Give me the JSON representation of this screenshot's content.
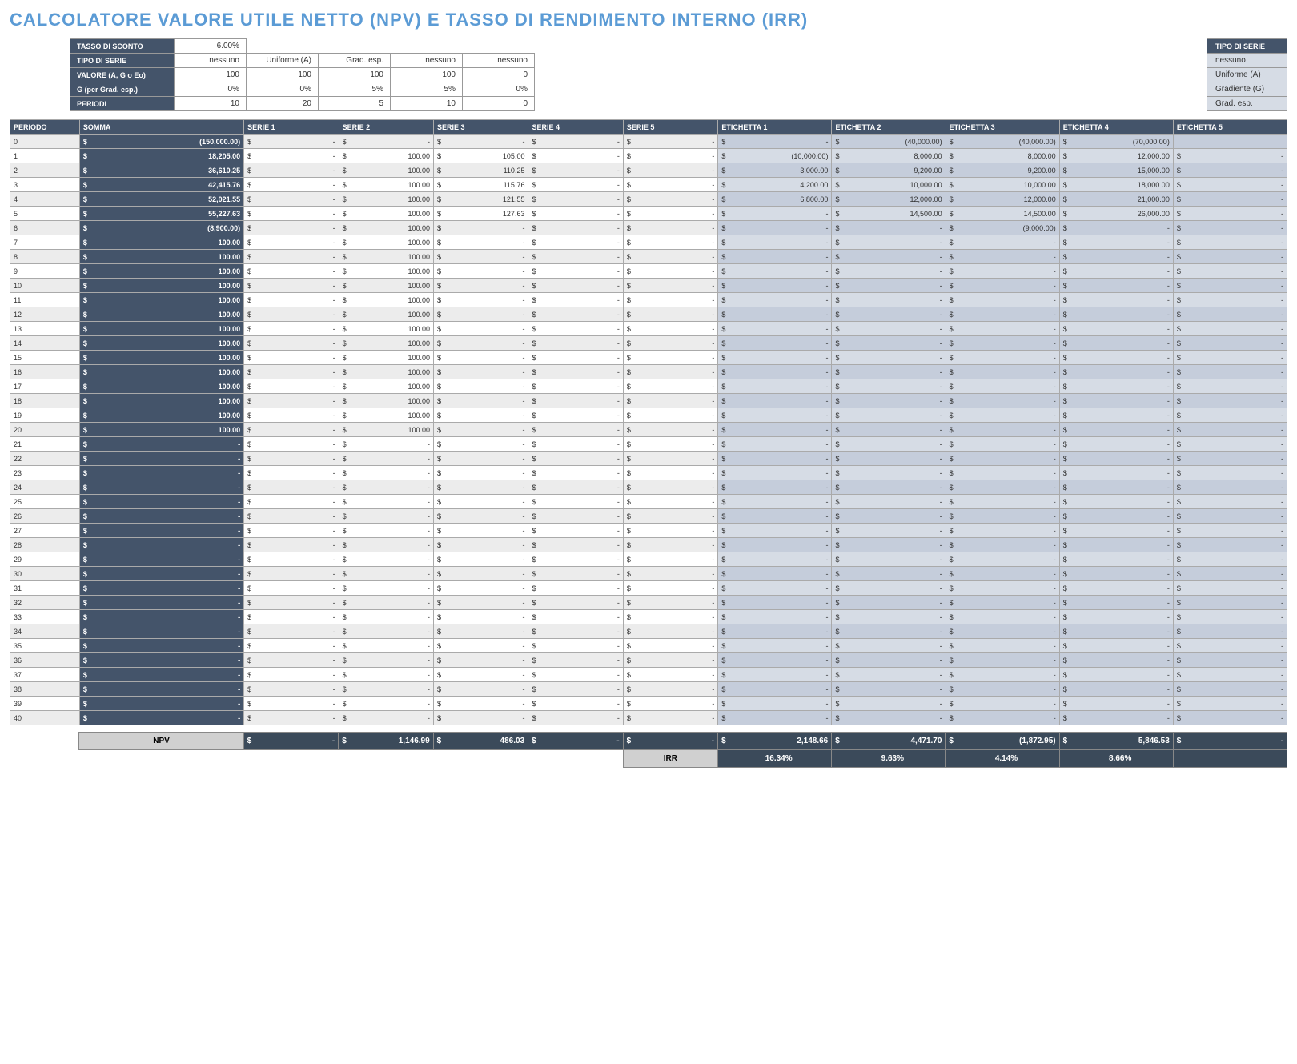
{
  "title": "CALCOLATORE VALORE UTILE NETTO (NPV) E TASSO DI RENDIMENTO INTERNO (IRR)",
  "params": {
    "rows": [
      {
        "label": "TASSO DI SCONTO",
        "vals": [
          "6.00%",
          "",
          "",
          "",
          ""
        ]
      },
      {
        "label": "TIPO DI SERIE",
        "vals": [
          "nessuno",
          "Uniforme (A)",
          "Grad. esp.",
          "nessuno",
          "nessuno"
        ]
      },
      {
        "label": "VALORE (A, G o Eo)",
        "vals": [
          "100",
          "100",
          "100",
          "100",
          "0"
        ]
      },
      {
        "label": "G (per Grad. esp.)",
        "vals": [
          "0%",
          "0%",
          "5%",
          "5%",
          "0%"
        ]
      },
      {
        "label": "PERIODI",
        "vals": [
          "10",
          "20",
          "5",
          "10",
          "0"
        ]
      }
    ]
  },
  "tipoBox": {
    "header": "TIPO DI SERIE",
    "options": [
      "nessuno",
      "Uniforme (A)",
      "Gradiente (G)",
      "Grad. esp."
    ]
  },
  "headers": [
    "PERIODO",
    "SOMMA",
    "SERIE 1",
    "SERIE 2",
    "SERIE 3",
    "SERIE 4",
    "SERIE 5",
    "ETICHETTA 1",
    "ETICHETTA 2",
    "ETICHETTA 3",
    "ETICHETTA 4",
    "ETICHETTA 5"
  ],
  "rows": [
    {
      "p": "0",
      "somma": "(150,000.00)",
      "s": [
        "-",
        "-",
        "-",
        "-",
        "-"
      ],
      "e": [
        "-",
        "(40,000.00)",
        "(40,000.00)",
        "(70,000.00)",
        ""
      ]
    },
    {
      "p": "1",
      "somma": "18,205.00",
      "s": [
        "-",
        "100.00",
        "105.00",
        "-",
        "-"
      ],
      "e": [
        "(10,000.00)",
        "8,000.00",
        "8,000.00",
        "12,000.00",
        "-"
      ]
    },
    {
      "p": "2",
      "somma": "36,610.25",
      "s": [
        "-",
        "100.00",
        "110.25",
        "-",
        "-"
      ],
      "e": [
        "3,000.00",
        "9,200.00",
        "9,200.00",
        "15,000.00",
        "-"
      ]
    },
    {
      "p": "3",
      "somma": "42,415.76",
      "s": [
        "-",
        "100.00",
        "115.76",
        "-",
        "-"
      ],
      "e": [
        "4,200.00",
        "10,000.00",
        "10,000.00",
        "18,000.00",
        "-"
      ]
    },
    {
      "p": "4",
      "somma": "52,021.55",
      "s": [
        "-",
        "100.00",
        "121.55",
        "-",
        "-"
      ],
      "e": [
        "6,800.00",
        "12,000.00",
        "12,000.00",
        "21,000.00",
        "-"
      ]
    },
    {
      "p": "5",
      "somma": "55,227.63",
      "s": [
        "-",
        "100.00",
        "127.63",
        "-",
        "-"
      ],
      "e": [
        "-",
        "14,500.00",
        "14,500.00",
        "26,000.00",
        "-"
      ]
    },
    {
      "p": "6",
      "somma": "(8,900.00)",
      "s": [
        "-",
        "100.00",
        "-",
        "-",
        "-"
      ],
      "e": [
        "-",
        "-",
        "(9,000.00)",
        "-",
        "-"
      ]
    },
    {
      "p": "7",
      "somma": "100.00",
      "s": [
        "-",
        "100.00",
        "-",
        "-",
        "-"
      ],
      "e": [
        "-",
        "-",
        "-",
        "-",
        "-"
      ]
    },
    {
      "p": "8",
      "somma": "100.00",
      "s": [
        "-",
        "100.00",
        "-",
        "-",
        "-"
      ],
      "e": [
        "-",
        "-",
        "-",
        "-",
        "-"
      ]
    },
    {
      "p": "9",
      "somma": "100.00",
      "s": [
        "-",
        "100.00",
        "-",
        "-",
        "-"
      ],
      "e": [
        "-",
        "-",
        "-",
        "-",
        "-"
      ]
    },
    {
      "p": "10",
      "somma": "100.00",
      "s": [
        "-",
        "100.00",
        "-",
        "-",
        "-"
      ],
      "e": [
        "-",
        "-",
        "-",
        "-",
        "-"
      ]
    },
    {
      "p": "11",
      "somma": "100.00",
      "s": [
        "-",
        "100.00",
        "-",
        "-",
        "-"
      ],
      "e": [
        "-",
        "-",
        "-",
        "-",
        "-"
      ]
    },
    {
      "p": "12",
      "somma": "100.00",
      "s": [
        "-",
        "100.00",
        "-",
        "-",
        "-"
      ],
      "e": [
        "-",
        "-",
        "-",
        "-",
        "-"
      ]
    },
    {
      "p": "13",
      "somma": "100.00",
      "s": [
        "-",
        "100.00",
        "-",
        "-",
        "-"
      ],
      "e": [
        "-",
        "-",
        "-",
        "-",
        "-"
      ]
    },
    {
      "p": "14",
      "somma": "100.00",
      "s": [
        "-",
        "100.00",
        "-",
        "-",
        "-"
      ],
      "e": [
        "-",
        "-",
        "-",
        "-",
        "-"
      ]
    },
    {
      "p": "15",
      "somma": "100.00",
      "s": [
        "-",
        "100.00",
        "-",
        "-",
        "-"
      ],
      "e": [
        "-",
        "-",
        "-",
        "-",
        "-"
      ]
    },
    {
      "p": "16",
      "somma": "100.00",
      "s": [
        "-",
        "100.00",
        "-",
        "-",
        "-"
      ],
      "e": [
        "-",
        "-",
        "-",
        "-",
        "-"
      ]
    },
    {
      "p": "17",
      "somma": "100.00",
      "s": [
        "-",
        "100.00",
        "-",
        "-",
        "-"
      ],
      "e": [
        "-",
        "-",
        "-",
        "-",
        "-"
      ]
    },
    {
      "p": "18",
      "somma": "100.00",
      "s": [
        "-",
        "100.00",
        "-",
        "-",
        "-"
      ],
      "e": [
        "-",
        "-",
        "-",
        "-",
        "-"
      ]
    },
    {
      "p": "19",
      "somma": "100.00",
      "s": [
        "-",
        "100.00",
        "-",
        "-",
        "-"
      ],
      "e": [
        "-",
        "-",
        "-",
        "-",
        "-"
      ]
    },
    {
      "p": "20",
      "somma": "100.00",
      "s": [
        "-",
        "100.00",
        "-",
        "-",
        "-"
      ],
      "e": [
        "-",
        "-",
        "-",
        "-",
        "-"
      ]
    },
    {
      "p": "21",
      "somma": "-",
      "s": [
        "-",
        "-",
        "-",
        "-",
        "-"
      ],
      "e": [
        "-",
        "-",
        "-",
        "-",
        "-"
      ]
    },
    {
      "p": "22",
      "somma": "-",
      "s": [
        "-",
        "-",
        "-",
        "-",
        "-"
      ],
      "e": [
        "-",
        "-",
        "-",
        "-",
        "-"
      ]
    },
    {
      "p": "23",
      "somma": "-",
      "s": [
        "-",
        "-",
        "-",
        "-",
        "-"
      ],
      "e": [
        "-",
        "-",
        "-",
        "-",
        "-"
      ]
    },
    {
      "p": "24",
      "somma": "-",
      "s": [
        "-",
        "-",
        "-",
        "-",
        "-"
      ],
      "e": [
        "-",
        "-",
        "-",
        "-",
        "-"
      ]
    },
    {
      "p": "25",
      "somma": "-",
      "s": [
        "-",
        "-",
        "-",
        "-",
        "-"
      ],
      "e": [
        "-",
        "-",
        "-",
        "-",
        "-"
      ]
    },
    {
      "p": "26",
      "somma": "-",
      "s": [
        "-",
        "-",
        "-",
        "-",
        "-"
      ],
      "e": [
        "-",
        "-",
        "-",
        "-",
        "-"
      ]
    },
    {
      "p": "27",
      "somma": "-",
      "s": [
        "-",
        "-",
        "-",
        "-",
        "-"
      ],
      "e": [
        "-",
        "-",
        "-",
        "-",
        "-"
      ]
    },
    {
      "p": "28",
      "somma": "-",
      "s": [
        "-",
        "-",
        "-",
        "-",
        "-"
      ],
      "e": [
        "-",
        "-",
        "-",
        "-",
        "-"
      ]
    },
    {
      "p": "29",
      "somma": "-",
      "s": [
        "-",
        "-",
        "-",
        "-",
        "-"
      ],
      "e": [
        "-",
        "-",
        "-",
        "-",
        "-"
      ]
    },
    {
      "p": "30",
      "somma": "-",
      "s": [
        "-",
        "-",
        "-",
        "-",
        "-"
      ],
      "e": [
        "-",
        "-",
        "-",
        "-",
        "-"
      ]
    },
    {
      "p": "31",
      "somma": "-",
      "s": [
        "-",
        "-",
        "-",
        "-",
        "-"
      ],
      "e": [
        "-",
        "-",
        "-",
        "-",
        "-"
      ]
    },
    {
      "p": "32",
      "somma": "-",
      "s": [
        "-",
        "-",
        "-",
        "-",
        "-"
      ],
      "e": [
        "-",
        "-",
        "-",
        "-",
        "-"
      ]
    },
    {
      "p": "33",
      "somma": "-",
      "s": [
        "-",
        "-",
        "-",
        "-",
        "-"
      ],
      "e": [
        "-",
        "-",
        "-",
        "-",
        "-"
      ]
    },
    {
      "p": "34",
      "somma": "-",
      "s": [
        "-",
        "-",
        "-",
        "-",
        "-"
      ],
      "e": [
        "-",
        "-",
        "-",
        "-",
        "-"
      ]
    },
    {
      "p": "35",
      "somma": "-",
      "s": [
        "-",
        "-",
        "-",
        "-",
        "-"
      ],
      "e": [
        "-",
        "-",
        "-",
        "-",
        "-"
      ]
    },
    {
      "p": "36",
      "somma": "-",
      "s": [
        "-",
        "-",
        "-",
        "-",
        "-"
      ],
      "e": [
        "-",
        "-",
        "-",
        "-",
        "-"
      ]
    },
    {
      "p": "37",
      "somma": "-",
      "s": [
        "-",
        "-",
        "-",
        "-",
        "-"
      ],
      "e": [
        "-",
        "-",
        "-",
        "-",
        "-"
      ]
    },
    {
      "p": "38",
      "somma": "-",
      "s": [
        "-",
        "-",
        "-",
        "-",
        "-"
      ],
      "e": [
        "-",
        "-",
        "-",
        "-",
        "-"
      ]
    },
    {
      "p": "39",
      "somma": "-",
      "s": [
        "-",
        "-",
        "-",
        "-",
        "-"
      ],
      "e": [
        "-",
        "-",
        "-",
        "-",
        "-"
      ]
    },
    {
      "p": "40",
      "somma": "-",
      "s": [
        "-",
        "-",
        "-",
        "-",
        "-"
      ],
      "e": [
        "-",
        "-",
        "-",
        "-",
        "-"
      ]
    }
  ],
  "npv": {
    "label": "NPV",
    "s": [
      "-",
      "1,146.99",
      "486.03",
      "-",
      "-"
    ],
    "e": [
      "2,148.66",
      "4,471.70",
      "(1,872.95)",
      "5,846.53",
      "-"
    ]
  },
  "irr": {
    "label": "IRR",
    "vals": [
      "16.34%",
      "9.63%",
      "4.14%",
      "8.66%",
      ""
    ]
  }
}
